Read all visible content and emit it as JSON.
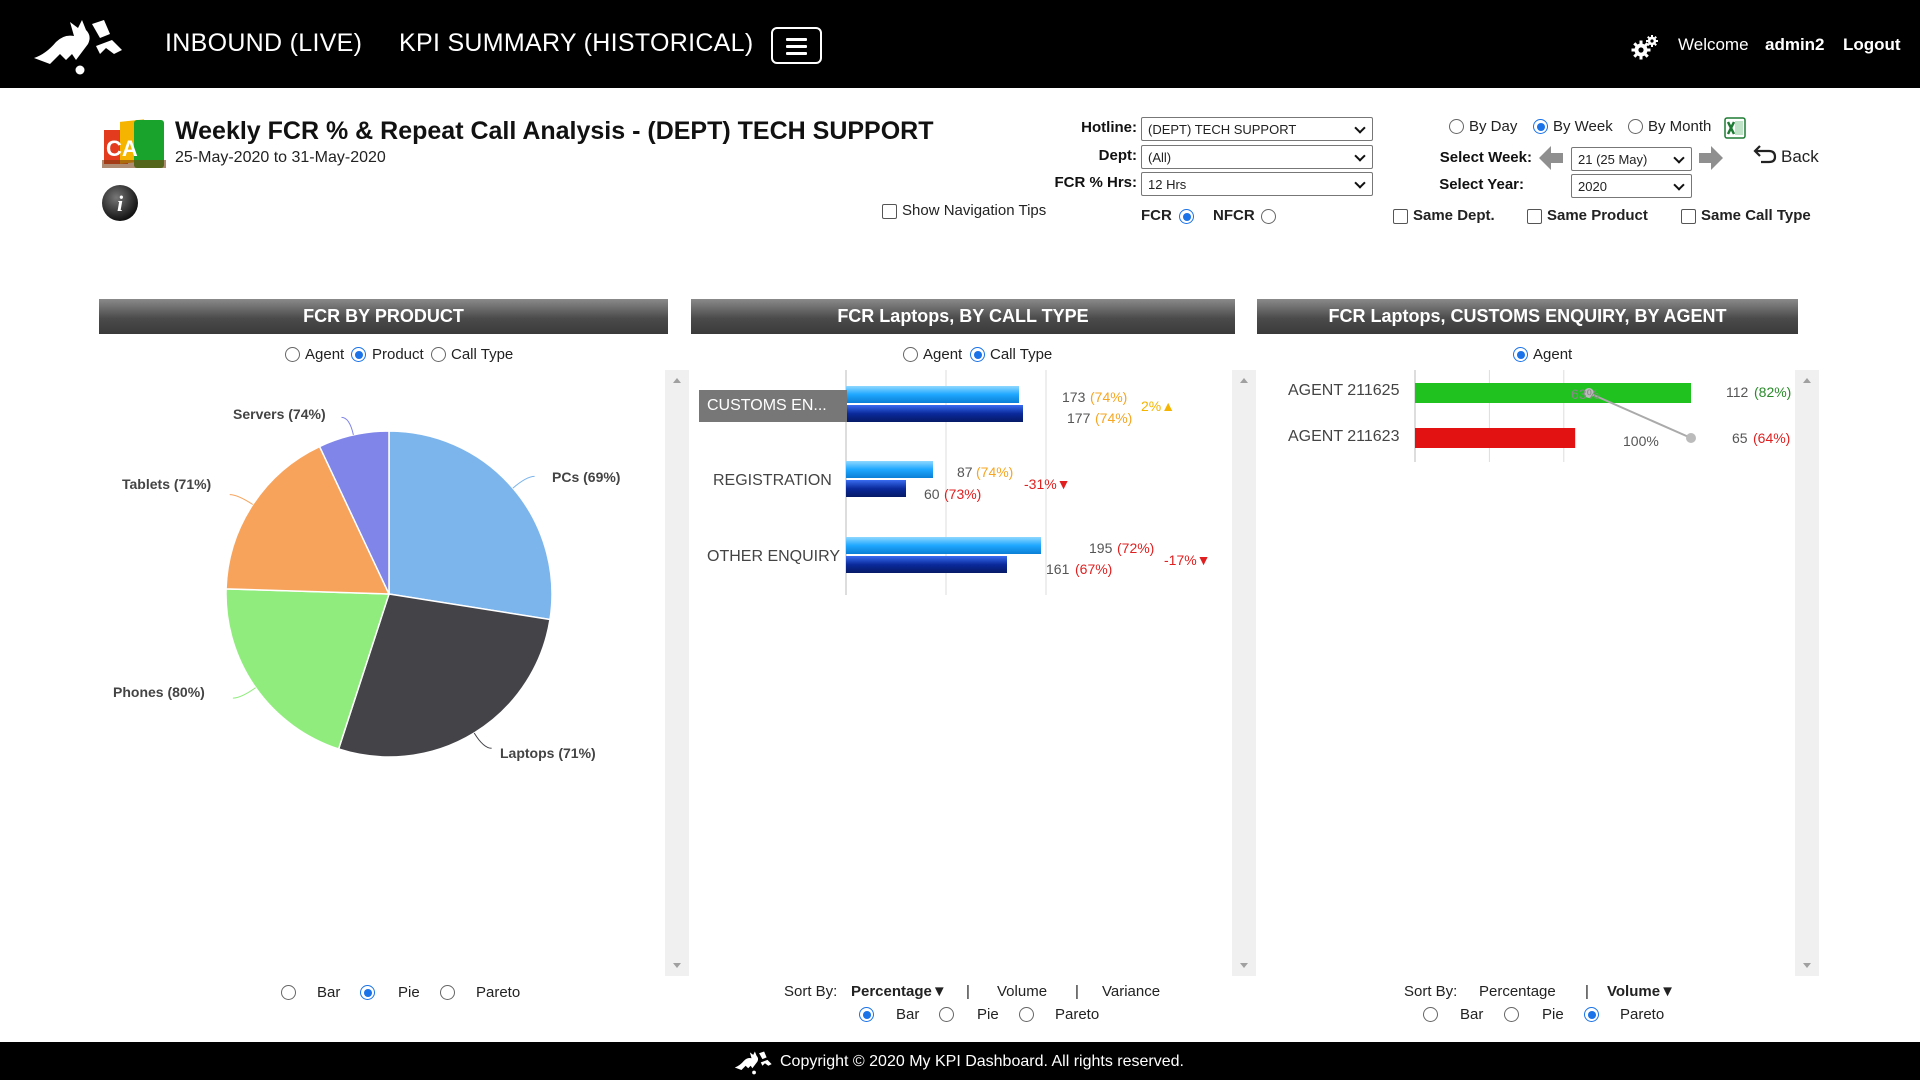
{
  "nav": {
    "inbound_label": "INBOUND (LIVE)",
    "kpi_label": "KPI SUMMARY (HISTORICAL)",
    "welcome": "Welcome",
    "user": "admin2",
    "logout": "Logout"
  },
  "header": {
    "title": "Weekly FCR % & Repeat Call Analysis - (DEPT) TECH SUPPORT",
    "date_range": "25-May-2020 to 31-May-2020",
    "logo_letters": "CA"
  },
  "filters": {
    "hotline_label": "Hotline:",
    "hotline_value": "(DEPT) TECH SUPPORT",
    "dept_label": "Dept:",
    "dept_value": "(All)",
    "fcr_hrs_label": "FCR % Hrs:",
    "fcr_hrs_value": "12 Hrs",
    "show_nav_tips": "Show Navigation Tips",
    "fcr": "FCR",
    "nfcr": "NFCR",
    "by_day": "By Day",
    "by_week": "By Week",
    "by_month": "By Month",
    "select_week_label": "Select Week:",
    "select_week_value": "21 (25 May)",
    "select_year_label": "Select Year:",
    "select_year_value": "2020",
    "back": "Back",
    "same_dept": "Same Dept.",
    "same_product": "Same Product",
    "same_call_type": "Same Call Type"
  },
  "colors": {
    "pcs": "#7cb5ec",
    "laptops": "#434348",
    "phones": "#90ed7d",
    "tablets": "#f7a35c",
    "servers": "#8085e9",
    "bar_light": "#1ea7ff",
    "bar_dark": "#0a2a9c",
    "agent_green": "#1fc21f",
    "agent_red": "#e31212",
    "radio_blue": "#1a73e8"
  },
  "panel1": {
    "title": "FCR BY PRODUCT",
    "opt_agent": "Agent",
    "opt_product": "Product",
    "opt_call_type": "Call Type",
    "chart_bar": "Bar",
    "chart_pie": "Pie",
    "chart_pareto": "Pareto",
    "slice_labels": {
      "pcs": "PCs (69%)",
      "laptops": "Laptops (71%)",
      "phones": "Phones (80%)",
      "tablets": "Tablets (71%)",
      "servers": "Servers (74%)"
    }
  },
  "panel2": {
    "title": "FCR Laptops, BY CALL TYPE",
    "opt_agent": "Agent",
    "opt_call_type": "Call Type",
    "sort_by": "Sort By:",
    "sort_percentage": "Percentage▼",
    "sort_volume": "Volume",
    "sort_variance": "Variance",
    "sep": "|",
    "chart_bar": "Bar",
    "chart_pie": "Pie",
    "chart_pareto": "Pareto",
    "rows": [
      {
        "category": "CUSTOMS EN...",
        "v1": "173",
        "p1": "(74%)",
        "v2": "177",
        "p2": "(74%)",
        "variance": "2%▲"
      },
      {
        "category": "REGISTRATION",
        "v1": "87",
        "p1": "(74%)",
        "v2": "60",
        "p2": "(73%)",
        "variance": "-31%▼"
      },
      {
        "category": "OTHER ENQUIRY",
        "v1": "195",
        "p1": "(72%)",
        "v2": "161",
        "p2": "(67%)",
        "variance": "-17%▼"
      }
    ]
  },
  "panel3": {
    "title": "FCR Laptops, CUSTOMS ENQUIRY, BY AGENT",
    "opt_agent": "Agent",
    "sort_by": "Sort By:",
    "sort_percentage": "Percentage",
    "sort_volume": "Volume▼",
    "sep": "|",
    "chart_bar": "Bar",
    "chart_pie": "Pie",
    "chart_pareto": "Pareto",
    "rows": [
      {
        "agent": "AGENT 211625",
        "volume": "112",
        "pct": "(82%)",
        "cum": "63%"
      },
      {
        "agent": "AGENT 211623",
        "volume": "65",
        "pct": "(64%)",
        "cum": "100%"
      }
    ]
  },
  "chart_data": [
    {
      "type": "pie",
      "title": "FCR BY PRODUCT",
      "categories": [
        "PCs",
        "Laptops",
        "Phones",
        "Tablets",
        "Servers"
      ],
      "values": [
        27.5,
        27.5,
        20.5,
        17.5,
        7
      ],
      "fcr_percent": [
        69,
        71,
        80,
        71,
        74
      ]
    },
    {
      "type": "bar",
      "title": "FCR Laptops, BY CALL TYPE",
      "categories": [
        "CUSTOMS EN...",
        "REGISTRATION",
        "OTHER ENQUIRY"
      ],
      "series": [
        {
          "values": [
            173,
            87,
            195
          ],
          "fcr_percent": [
            74,
            74,
            72
          ]
        },
        {
          "values": [
            177,
            60,
            161
          ],
          "fcr_percent": [
            74,
            73,
            67
          ]
        }
      ],
      "variance_percent": [
        2,
        -31,
        -17
      ]
    },
    {
      "type": "bar",
      "title": "FCR Laptops, CUSTOMS ENQUIRY, BY AGENT",
      "categories": [
        "AGENT 211625",
        "AGENT 211623"
      ],
      "values": [
        112,
        65
      ],
      "fcr_percent": [
        82,
        64
      ],
      "cumulative_percent": [
        63,
        100
      ]
    }
  ],
  "footer": {
    "copyright": "Copyright © 2020 My KPI Dashboard. All rights reserved."
  }
}
